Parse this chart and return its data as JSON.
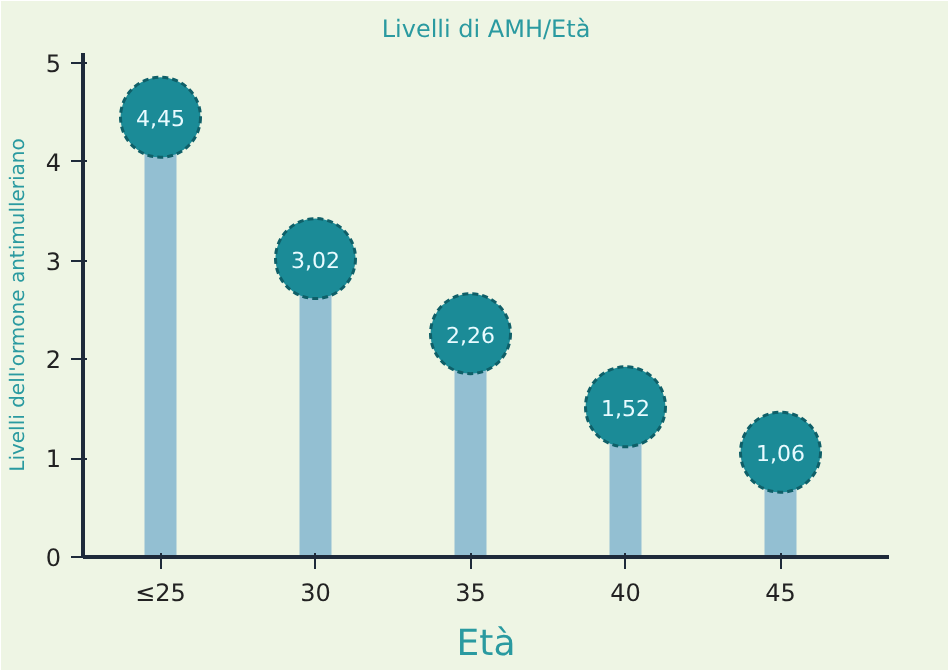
{
  "chart_data": {
    "type": "lollipop",
    "title": "Livelli di AMH/Età",
    "xlabel": "Età",
    "ylabel": "Livelli dell'ormone antimulleriano",
    "categories": [
      "≤25",
      "30",
      "35",
      "40",
      "45"
    ],
    "values": [
      4.45,
      3.02,
      2.26,
      1.52,
      1.06
    ],
    "value_labels": [
      "4,45",
      "3,02",
      "2,26",
      "1,52",
      "1,06"
    ],
    "color": "#1b8b97",
    "ylim": [
      0,
      5.1
    ],
    "yticks": [
      0,
      1,
      2,
      3,
      4,
      5
    ],
    "grid": false,
    "marker": "circle"
  }
}
